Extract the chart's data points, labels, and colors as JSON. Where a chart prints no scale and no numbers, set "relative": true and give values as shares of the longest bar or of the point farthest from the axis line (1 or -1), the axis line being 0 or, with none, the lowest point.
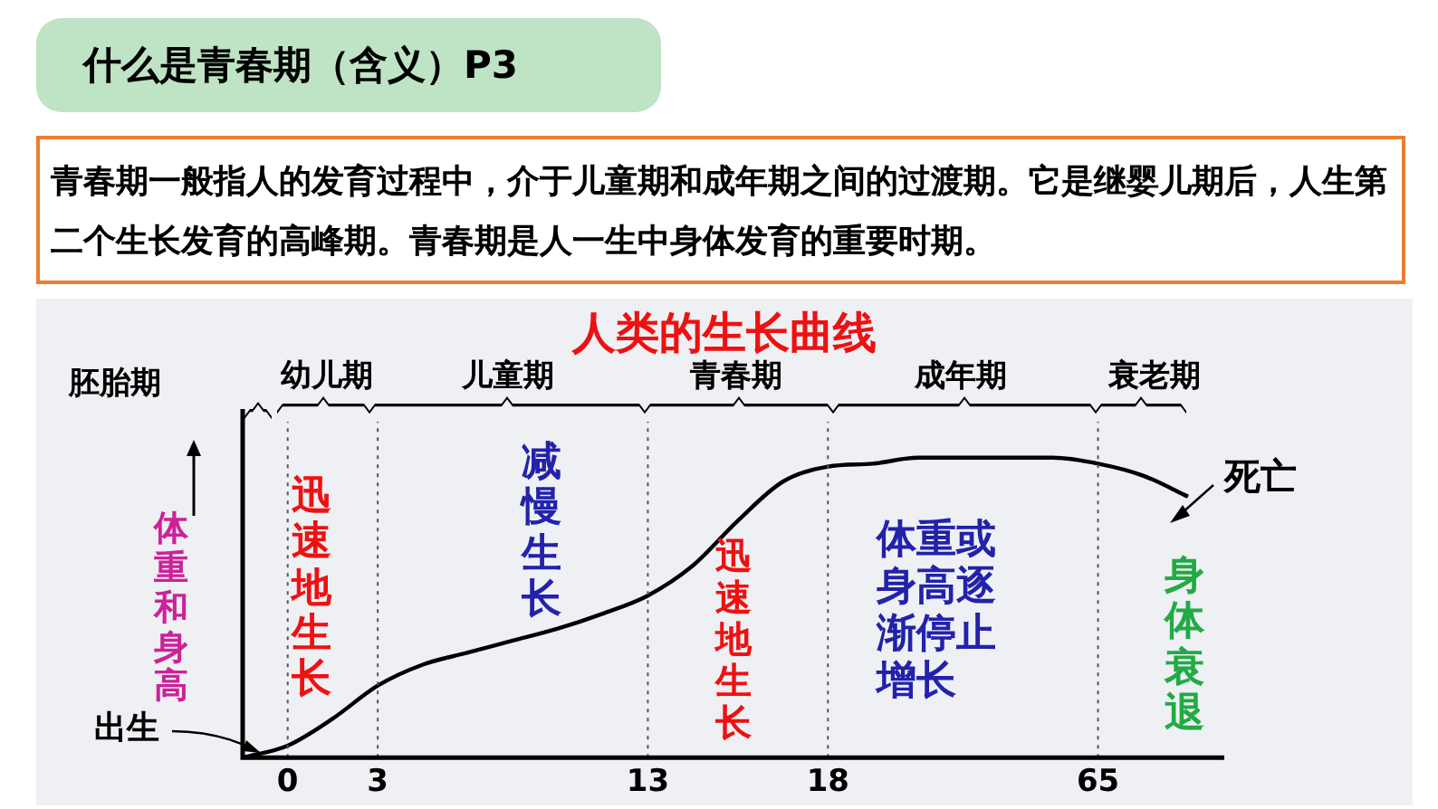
{
  "chart_data": {
    "type": "line",
    "title": "人类的生长曲线",
    "ylabel": "体重和身高",
    "relative": true,
    "categories": [
      null,
      "0",
      null,
      "3",
      null,
      null,
      null,
      null,
      null,
      "13",
      null,
      null,
      null,
      "18",
      null,
      null,
      null,
      null,
      null,
      "65",
      null,
      null
    ],
    "series": [
      {
        "color": "#000000",
        "values": [
          0,
          0.04,
          0.13,
          0.24,
          0.31,
          0.35,
          0.39,
          0.43,
          0.48,
          0.54,
          0.64,
          0.79,
          0.92,
          0.97,
          0.98,
          1,
          1,
          1,
          1,
          0.98,
          0.94,
          0.87
        ]
      }
    ],
    "ref_lines": [
      {
        "axis": "x",
        "value": "0",
        "line_style": "dotted",
        "color": "#555555"
      },
      {
        "axis": "x",
        "value": "3",
        "line_style": "dotted",
        "color": "#555555"
      },
      {
        "axis": "x",
        "value": "13",
        "line_style": "dotted",
        "color": "#555555"
      },
      {
        "axis": "x",
        "value": "18",
        "line_style": "dotted",
        "color": "#555555"
      },
      {
        "axis": "x",
        "value": "65",
        "line_style": "dotted",
        "color": "#555555"
      }
    ],
    "annotations": [
      "什么是青春期（含义）P3",
      "青春期一般指人的发育过程中，介于儿童期和成年期之间的过渡期。它是继婴儿期后，人生第二个生长发育的高峰期。青春期是人一生中身体发育的重要时期。",
      "胚胎期",
      "幼儿期",
      "儿童期",
      "青春期",
      "成年期",
      "衰老期",
      "出生",
      "死亡",
      "迅速地生长",
      "减慢生长",
      "迅速地生长",
      "体重或身高逐渐停止增长",
      "身体衰退"
    ],
    "marker": "none",
    "line_style": "solid",
    "grid": false,
    "legend": false
  }
}
